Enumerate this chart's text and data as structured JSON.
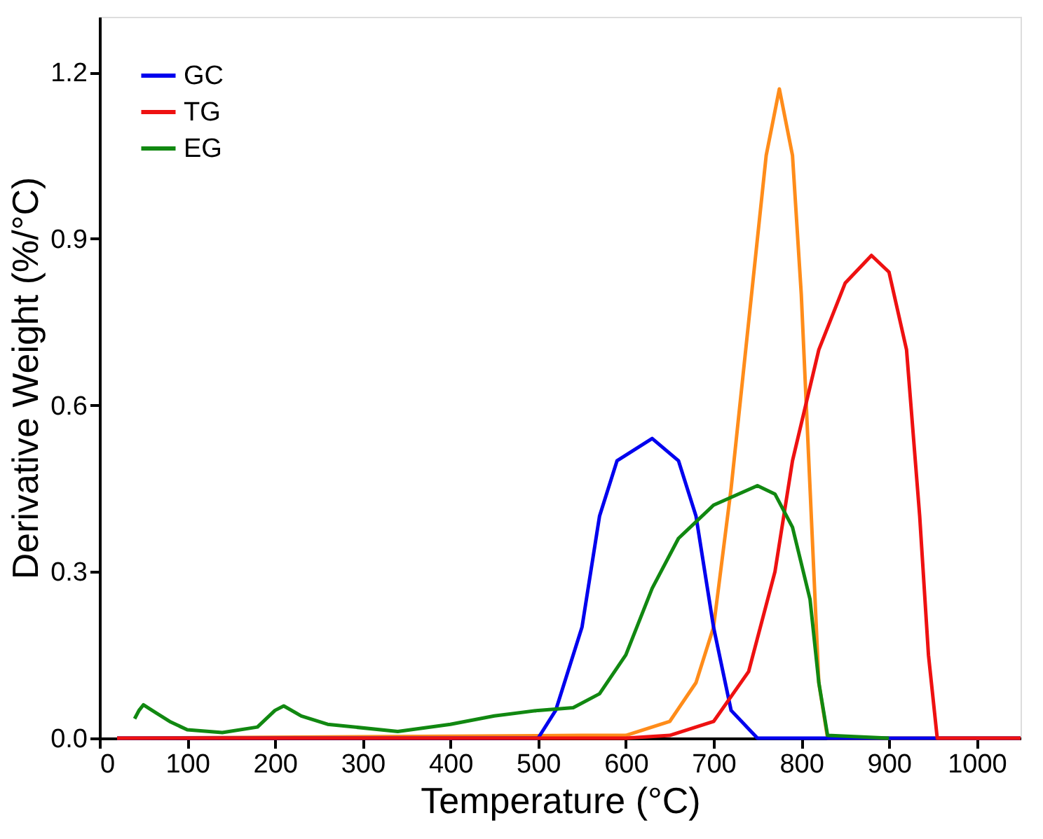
{
  "chart_data": {
    "type": "line",
    "xlabel": "Temperature (°C)",
    "ylabel": "Derivative Weight (%/°C)",
    "xlim": [
      0,
      1050
    ],
    "xticks": [
      0,
      100,
      200,
      300,
      400,
      500,
      600,
      700,
      800,
      900,
      1000
    ],
    "ylim": [
      0,
      1.3
    ],
    "yticks": [
      {
        "value": 0,
        "label": "0.0"
      },
      0.3,
      0.6,
      0.9,
      1.2
    ],
    "grid": false,
    "legend": "top left",
    "marker": "none",
    "line_style": "solid",
    "series": [
      {
        "color": "#ff8c1a",
        "x": [
          20,
          550,
          600,
          650,
          680,
          700,
          720,
          740,
          760,
          775,
          790,
          800,
          810,
          820,
          830,
          1050
        ],
        "values": [
          0,
          0.005,
          0.005,
          0.03,
          0.1,
          0.2,
          0.45,
          0.75,
          1.05,
          1.17,
          1.05,
          0.8,
          0.45,
          0.1,
          0,
          0
        ]
      },
      {
        "name": "GC",
        "color": "#0000ee",
        "x": [
          20,
          500,
          520,
          550,
          570,
          590,
          630,
          660,
          680,
          700,
          720,
          750,
          1050
        ],
        "values": [
          0,
          0,
          0.05,
          0.2,
          0.4,
          0.5,
          0.54,
          0.5,
          0.4,
          0.2,
          0.05,
          0,
          0
        ]
      },
      {
        "name": "TG",
        "color": "#ee1111",
        "x": [
          20,
          600,
          650,
          700,
          740,
          770,
          790,
          820,
          850,
          880,
          900,
          920,
          935,
          945,
          955,
          1050
        ],
        "values": [
          0,
          0,
          0.005,
          0.03,
          0.12,
          0.3,
          0.5,
          0.7,
          0.82,
          0.87,
          0.84,
          0.7,
          0.4,
          0.15,
          0,
          0
        ]
      },
      {
        "name": "EG",
        "color": "#118811",
        "x": [
          40,
          45,
          50,
          60,
          80,
          100,
          140,
          180,
          200,
          210,
          230,
          260,
          340,
          400,
          450,
          500,
          540,
          570,
          600,
          630,
          660,
          700,
          750,
          770,
          790,
          810,
          820,
          830,
          900
        ],
        "values": [
          0.035,
          0.05,
          0.06,
          0.05,
          0.03,
          0.015,
          0.01,
          0.02,
          0.05,
          0.058,
          0.04,
          0.025,
          0.012,
          0.025,
          0.04,
          0.05,
          0.055,
          0.08,
          0.15,
          0.27,
          0.36,
          0.42,
          0.455,
          0.44,
          0.38,
          0.25,
          0.1,
          0.005,
          0
        ]
      }
    ]
  }
}
